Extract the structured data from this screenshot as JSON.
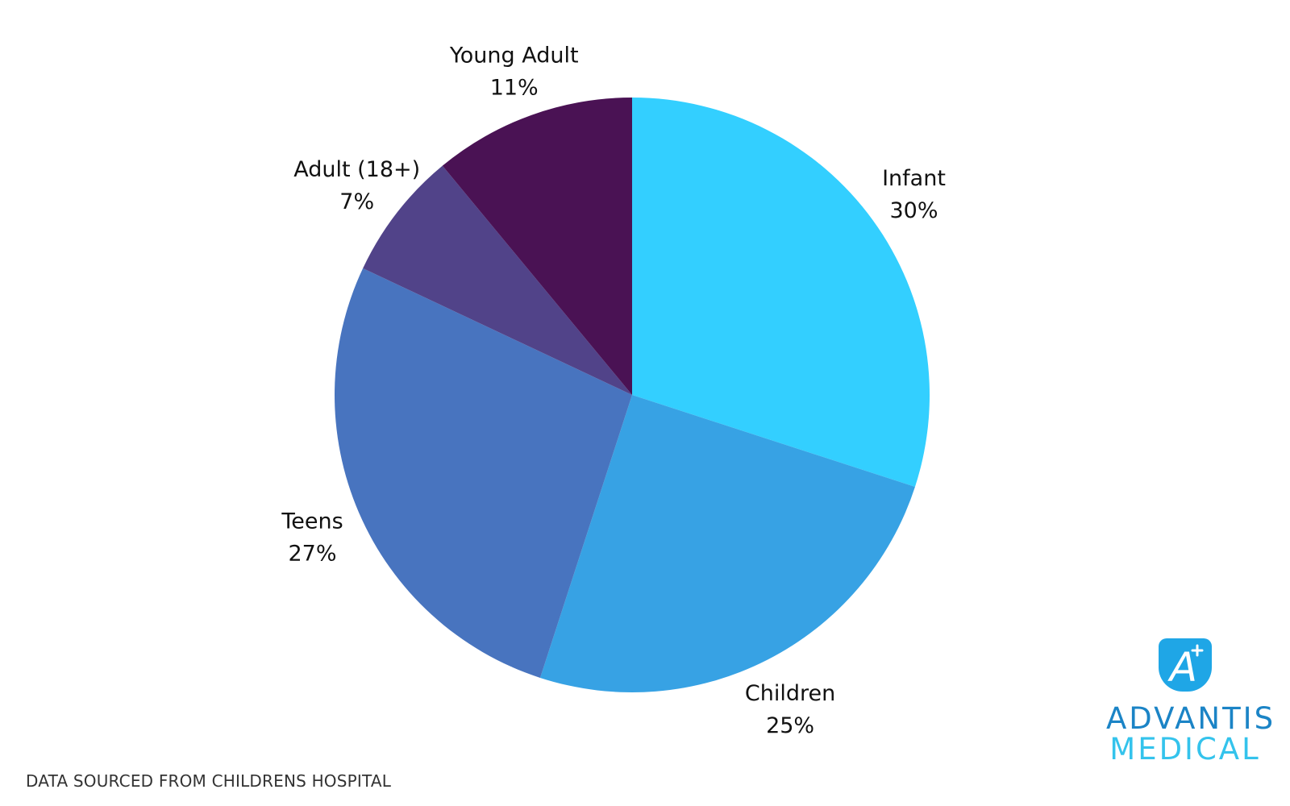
{
  "chart_data": {
    "type": "pie",
    "start": "12 o'clock",
    "direction": "clockwise",
    "slices": [
      {
        "label": "Infant",
        "value": 30,
        "pct_label": "30%",
        "color": "#33cfff"
      },
      {
        "label": "Children",
        "value": 25,
        "pct_label": "25%",
        "color": "#37a2e4"
      },
      {
        "label": "Teens",
        "value": 27,
        "pct_label": "27%",
        "color": "#4874bf"
      },
      {
        "label": "Adult (18+)",
        "value": 7,
        "pct_label": "7%",
        "color": "#514389"
      },
      {
        "label": "Young Adult",
        "value": 11,
        "pct_label": "11%",
        "color": "#4a1254"
      }
    ]
  },
  "footer": {
    "source_note": "DATA SOURCED FROM CHILDRENS HOSPITAL"
  },
  "logo": {
    "line1": "ADVANTIS",
    "line2": "MEDICAL",
    "mark_letter": "A",
    "icon": "advantis-a-plus-icon",
    "mark_color": "#1fa6e6"
  }
}
